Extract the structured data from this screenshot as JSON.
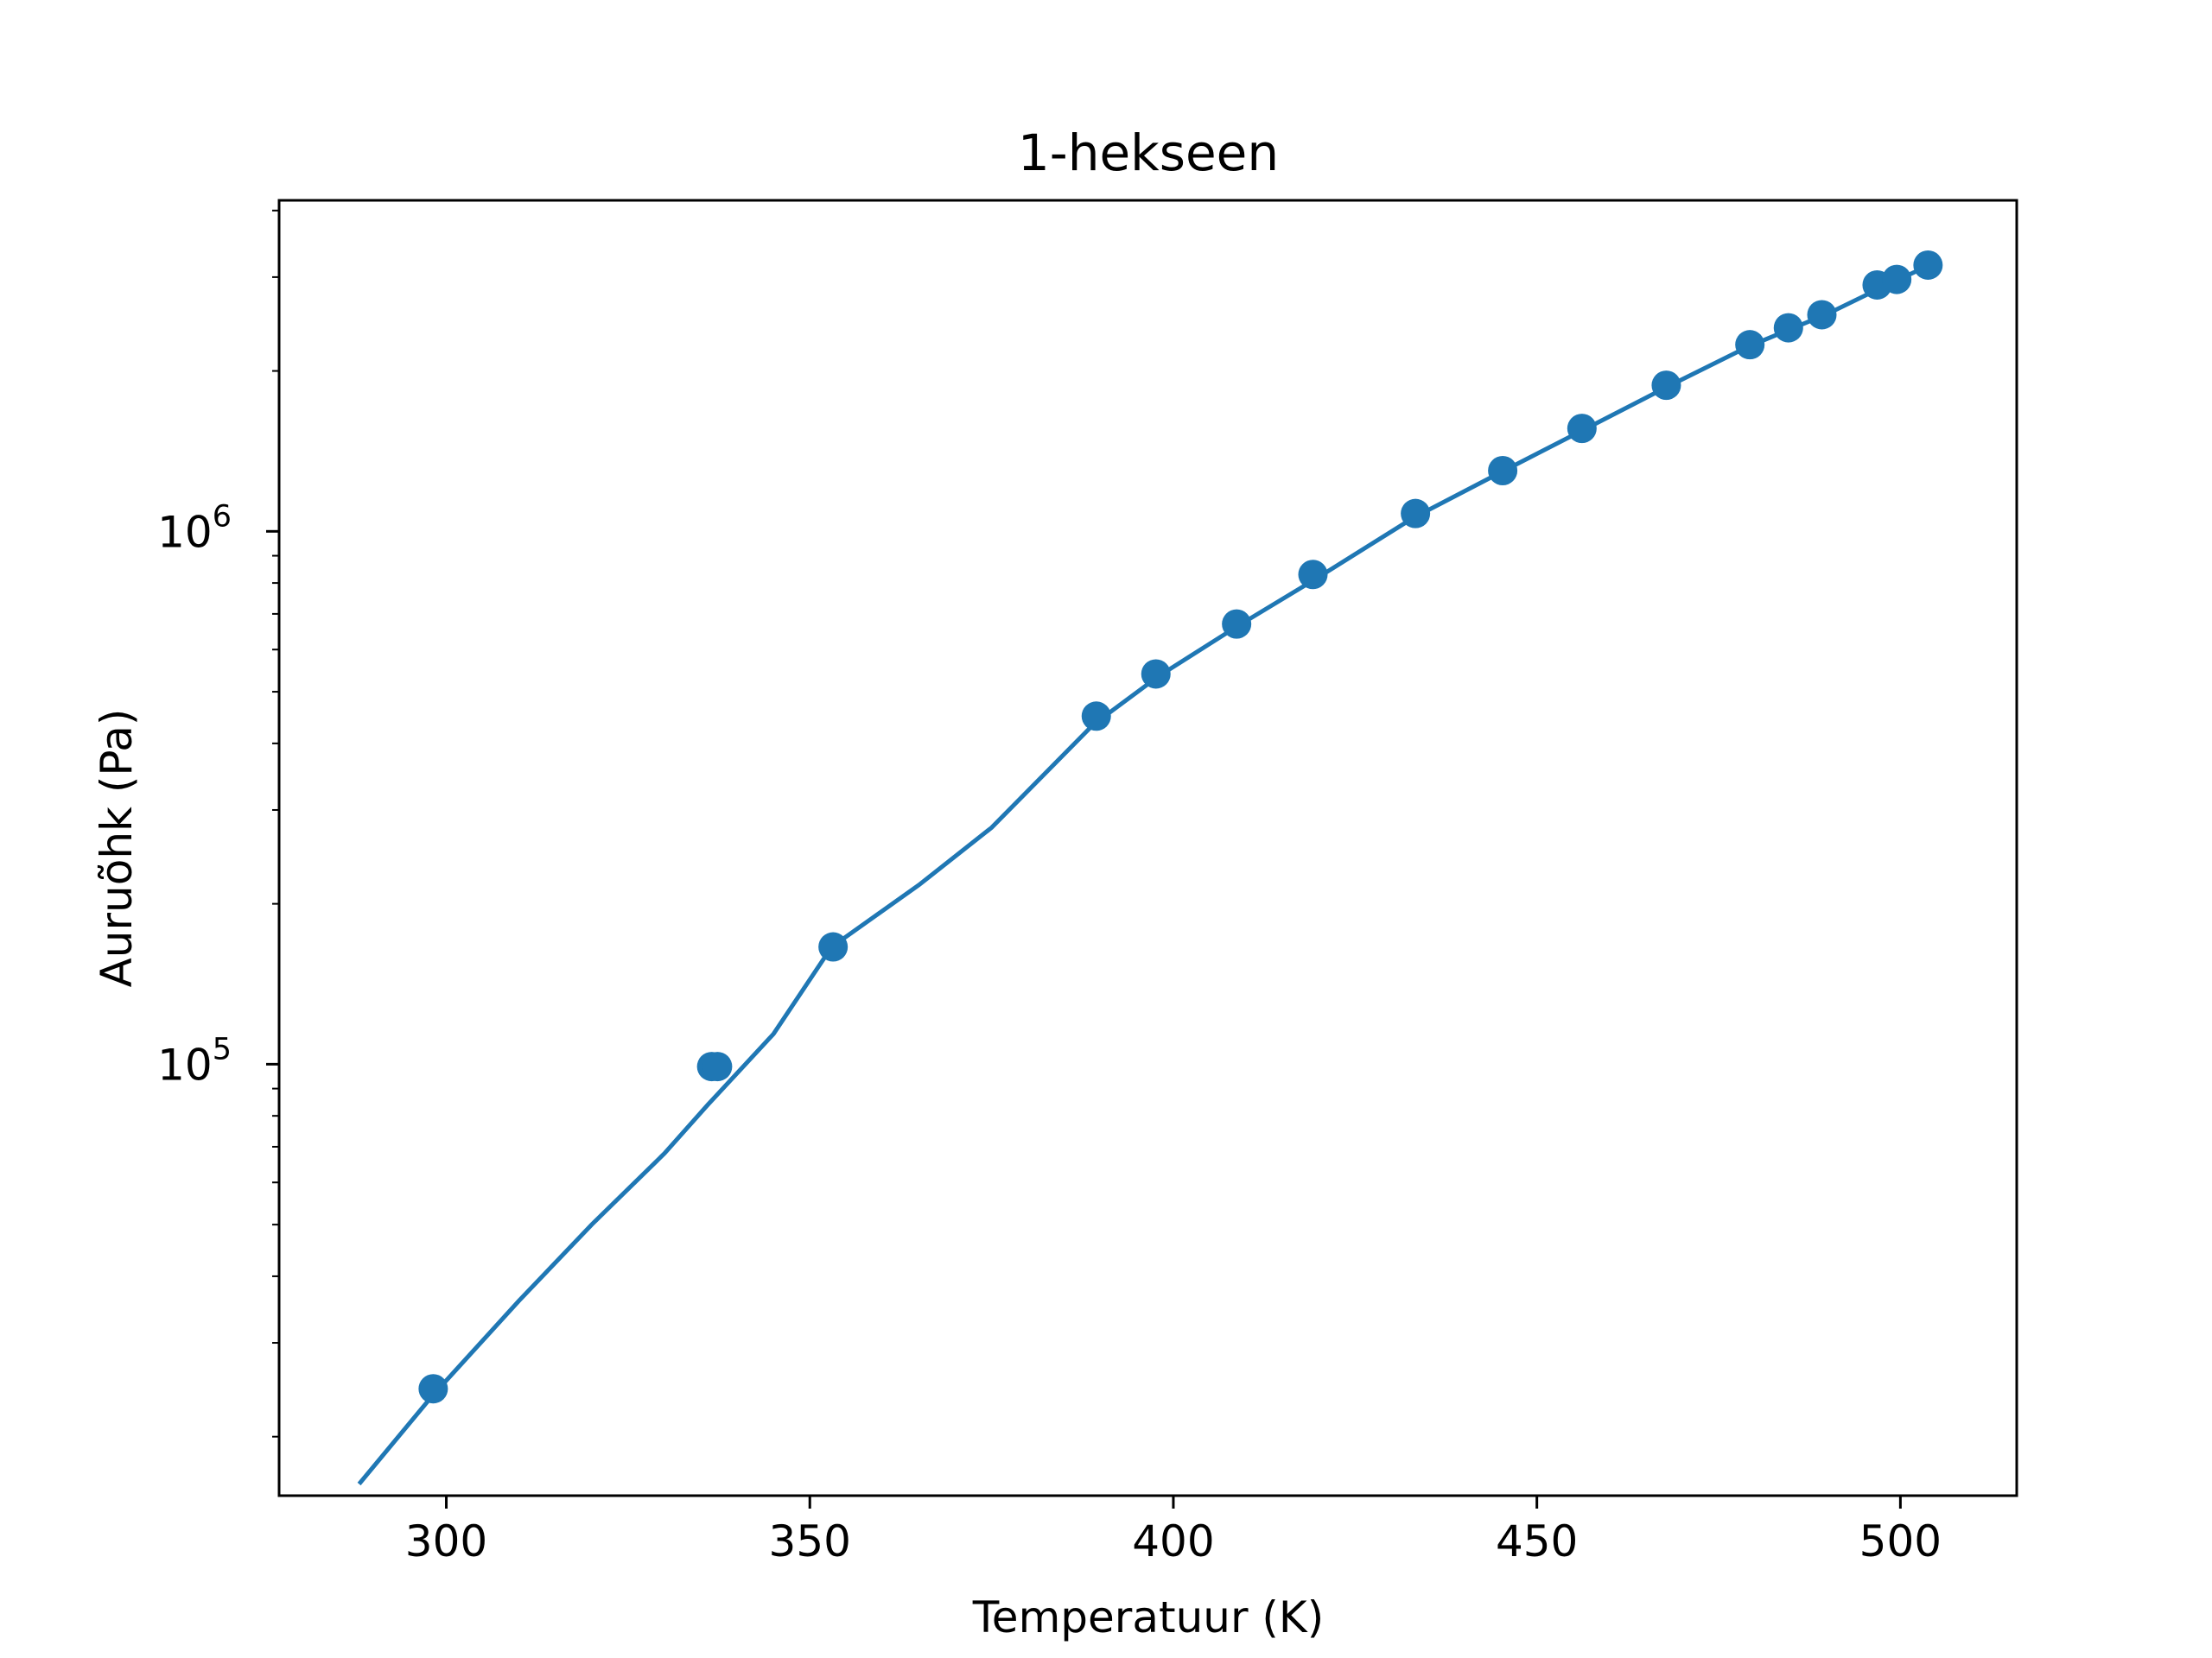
{
  "chart_data": {
    "type": "scatter",
    "title": "1-hekseen",
    "xlabel": "Temperatuur (K)",
    "ylabel": "Auruõhk (Pa)",
    "xlim": [
      277,
      516
    ],
    "ylim": [
      15500,
      4180000
    ],
    "yscale": "log",
    "grid": false,
    "xticks": [
      300,
      350,
      400,
      450,
      500
    ],
    "yticks": [
      {
        "value": 100000,
        "base": "10",
        "exp": "5"
      },
      {
        "value": 1000000,
        "base": "10",
        "exp": "6"
      }
    ],
    "yminor": [
      20000,
      30000,
      40000,
      50000,
      60000,
      70000,
      80000,
      90000,
      200000,
      300000,
      400000,
      500000,
      600000,
      700000,
      800000,
      900000,
      2000000,
      3000000,
      4000000
    ],
    "colors": {
      "series": "#1f77b4"
    },
    "points": {
      "x": [
        298.2,
        336.5,
        337.3,
        353.2,
        389.4,
        397.6,
        408.7,
        419.2,
        433.3,
        445.3,
        456.2,
        467.8,
        479.3,
        484.6,
        489.2,
        496.8,
        499.5,
        503.8
      ],
      "y": [
        24600,
        99000,
        99000,
        166000,
        450000,
        540000,
        670000,
        830000,
        1080000,
        1300000,
        1560000,
        1880000,
        2240000,
        2410000,
        2550000,
        2900000,
        2970000,
        3160000
      ]
    },
    "curve": {
      "x": [
        288,
        298,
        310,
        320,
        330,
        336,
        345,
        353,
        365,
        375,
        389,
        398,
        409,
        419,
        433,
        445,
        456,
        468,
        479,
        485,
        490,
        497,
        500,
        504
      ],
      "y": [
        16300,
        23800,
        36000,
        50000,
        68000,
        84000,
        114000,
        166000,
        217000,
        278000,
        434000,
        535000,
        666000,
        805000,
        1060000,
        1290000,
        1540000,
        1870000,
        2220000,
        2400000,
        2560000,
        2850000,
        2980000,
        3160000
      ]
    }
  }
}
